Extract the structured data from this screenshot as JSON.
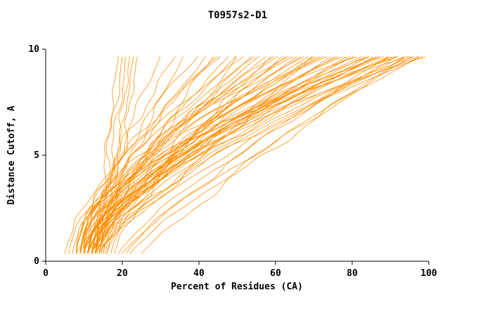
{
  "chart_data": {
    "type": "line",
    "title": "T0957s2-D1",
    "xlabel": "Percent of Residues (CA)",
    "ylabel": "Distance Cutoff, A",
    "xlim": [
      0,
      100
    ],
    "ylim": [
      0,
      10
    ],
    "xticks": [
      0,
      20,
      40,
      60,
      80,
      100
    ],
    "yticks": [
      0,
      5,
      10
    ],
    "grid": false,
    "legend": "none",
    "line_color": "#ff8c00",
    "axis_color": "#000000",
    "y_start": 0.35,
    "y_end": 9.7,
    "curve_param_format": [
      "x_at_y_start",
      "x_at_y_end",
      "shape_exponent",
      "wiggle_amp",
      "wiggle_freq",
      "wiggle_phase"
    ],
    "curves": [
      [
        13,
        19,
        1.1,
        0.6,
        2.0,
        0.5
      ],
      [
        14,
        21,
        1.0,
        0.8,
        1.6,
        1.2
      ],
      [
        14.5,
        22,
        0.9,
        0.7,
        2.2,
        2.0
      ],
      [
        15,
        23,
        1.05,
        0.5,
        1.8,
        0.3
      ],
      [
        13.5,
        20,
        1.15,
        0.9,
        1.4,
        2.6
      ],
      [
        15.5,
        24,
        0.95,
        0.6,
        2.4,
        1.0
      ],
      [
        12,
        30,
        1.3,
        1.0,
        1.5,
        0.0
      ],
      [
        11,
        34,
        1.5,
        1.2,
        1.8,
        1.0
      ],
      [
        13,
        36,
        1.2,
        0.8,
        2.0,
        2.2
      ],
      [
        10,
        40,
        1.6,
        1.1,
        1.3,
        0.7
      ],
      [
        12,
        42,
        1.4,
        0.9,
        2.1,
        1.5
      ],
      [
        14,
        44,
        1.25,
        1.3,
        1.7,
        2.8
      ],
      [
        9,
        46,
        1.7,
        1.0,
        1.2,
        0.4
      ],
      [
        11,
        48,
        1.35,
        0.7,
        2.3,
        1.9
      ],
      [
        13,
        50,
        1.5,
        1.2,
        1.6,
        0.9
      ],
      [
        10,
        52,
        1.8,
        0.8,
        1.4,
        2.4
      ],
      [
        12,
        54,
        1.3,
        1.1,
        1.9,
        0.2
      ],
      [
        14,
        56,
        1.6,
        0.9,
        2.2,
        1.3
      ],
      [
        9,
        58,
        1.45,
        1.0,
        1.5,
        2.0
      ],
      [
        11,
        60,
        1.7,
        1.2,
        1.8,
        0.6
      ],
      [
        13,
        62,
        1.25,
        0.8,
        1.3,
        1.7
      ],
      [
        10,
        64,
        1.9,
        1.1,
        2.0,
        2.9
      ],
      [
        12,
        66,
        1.4,
        0.9,
        1.6,
        0.8
      ],
      [
        8,
        68,
        1.75,
        1.3,
        1.4,
        1.4
      ],
      [
        11,
        70,
        1.3,
        1.0,
        2.1,
        2.5
      ],
      [
        13,
        72,
        1.55,
        0.7,
        1.7,
        0.3
      ],
      [
        9,
        74,
        1.85,
        1.2,
        1.5,
        1.1
      ],
      [
        12,
        76,
        1.4,
        0.8,
        1.9,
        2.2
      ],
      [
        10,
        78,
        1.65,
        1.1,
        1.2,
        0.5
      ],
      [
        13,
        80,
        1.35,
        0.9,
        2.3,
        1.8
      ],
      [
        8,
        82,
        1.95,
        1.0,
        1.6,
        2.7
      ],
      [
        11,
        84,
        1.5,
        1.2,
        1.4,
        0.9
      ],
      [
        14,
        86,
        1.3,
        0.8,
        2.0,
        1.6
      ],
      [
        9,
        88,
        1.8,
        1.1,
        1.8,
        2.3
      ],
      [
        12,
        90,
        1.45,
        0.9,
        1.3,
        0.1
      ],
      [
        10,
        92,
        1.7,
        1.2,
        2.2,
        1.2
      ],
      [
        13,
        94,
        1.35,
        0.7,
        1.5,
        2.6
      ],
      [
        8,
        96,
        2.0,
        1.0,
        1.7,
        0.7
      ],
      [
        11,
        98,
        1.55,
        1.1,
        1.9,
        1.9
      ],
      [
        9,
        100,
        1.8,
        0.9,
        1.4,
        2.1
      ],
      [
        12,
        99,
        1.4,
        1.2,
        2.1,
        0.4
      ],
      [
        10,
        97,
        1.65,
        0.8,
        1.6,
        1.5
      ],
      [
        14,
        95,
        1.3,
        1.0,
        1.2,
        2.8
      ],
      [
        8,
        93,
        1.9,
        1.1,
        2.0,
        0.8
      ],
      [
        11,
        91,
        1.5,
        0.9,
        1.8,
        1.7
      ],
      [
        13,
        89,
        1.75,
        1.2,
        1.5,
        2.4
      ],
      [
        9,
        87,
        1.4,
        0.8,
        2.2,
        0.2
      ],
      [
        12,
        85,
        1.85,
        1.0,
        1.3,
        1.0
      ],
      [
        10,
        83,
        1.45,
        1.1,
        1.7,
        2.0
      ],
      [
        15,
        81,
        1.6,
        0.9,
        1.9,
        0.6
      ],
      [
        8,
        79,
        1.3,
        1.2,
        1.4,
        1.3
      ],
      [
        11,
        77,
        1.7,
        0.8,
        2.1,
        2.5
      ],
      [
        13,
        75,
        1.35,
        1.0,
        1.6,
        0.9
      ],
      [
        9,
        73,
        1.8,
        1.1,
        1.2,
        1.8
      ],
      [
        12,
        71,
        1.5,
        0.9,
        2.3,
        2.9
      ],
      [
        16,
        69,
        1.65,
        1.2,
        1.5,
        0.3
      ],
      [
        10,
        67,
        1.4,
        0.8,
        1.8,
        1.1
      ],
      [
        13,
        65,
        1.9,
        1.0,
        1.3,
        2.2
      ],
      [
        17,
        63,
        1.45,
        1.1,
        2.0,
        0.5
      ],
      [
        11,
        61,
        1.6,
        0.9,
        1.6,
        1.4
      ],
      [
        18,
        59,
        1.3,
        1.2,
        1.9,
        2.7
      ],
      [
        20,
        98,
        1.2,
        1.0,
        1.4,
        0.8
      ],
      [
        22,
        96,
        1.15,
        0.9,
        1.7,
        1.6
      ],
      [
        25,
        94,
        1.1,
        1.1,
        2.0,
        2.3
      ],
      [
        19,
        92,
        1.25,
        0.8,
        1.5,
        0.4
      ],
      [
        21,
        90,
        1.2,
        1.0,
        1.8,
        1.2
      ],
      [
        6,
        55,
        1.5,
        0.9,
        1.6,
        2.0
      ],
      [
        5,
        45,
        1.4,
        1.0,
        1.9,
        0.6
      ],
      [
        7,
        88,
        1.7,
        1.1,
        1.3,
        1.5
      ],
      [
        10,
        50,
        0.9,
        1.0,
        1.5,
        1.0
      ],
      [
        12,
        70,
        0.95,
        0.9,
        1.8,
        2.0
      ],
      [
        16,
        85,
        1.5,
        1.0,
        1.6,
        0.5
      ]
    ]
  }
}
